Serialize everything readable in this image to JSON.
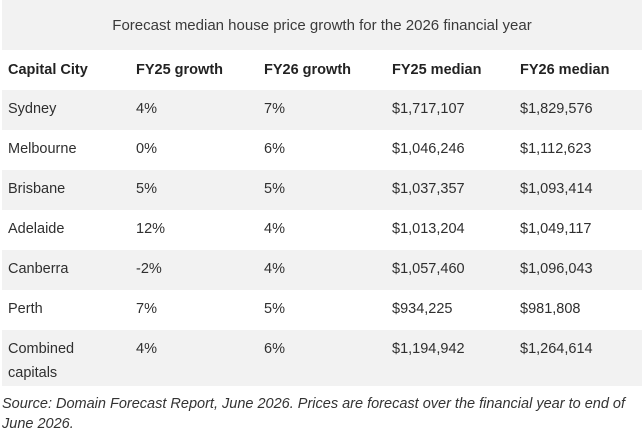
{
  "caption": "Forecast median house price growth for the 2026 financial year",
  "headers": [
    "Capital City",
    "FY25 growth",
    "FY26 growth",
    "FY25 median",
    "FY26 median"
  ],
  "rows": [
    [
      "Sydney",
      "4%",
      "7%",
      "$1,717,107",
      "$1,829,576"
    ],
    [
      "Melbourne",
      "0%",
      "6%",
      "$1,046,246",
      "$1,112,623"
    ],
    [
      "Brisbane",
      "5%",
      "5%",
      "$1,037,357",
      "$1,093,414"
    ],
    [
      "Adelaide",
      "12%",
      "4%",
      "$1,013,204",
      "$1,049,117"
    ],
    [
      "Canberra",
      "-2%",
      "4%",
      "$1,057,460",
      "$1,096,043"
    ],
    [
      "Perth",
      "7%",
      "5%",
      "$934,225",
      "$981,808"
    ],
    [
      "Combined capitals",
      "4%",
      "6%",
      "$1,194,942",
      "$1,264,614"
    ]
  ],
  "source": "Source: Domain Forecast Report, June 2026. Prices are forecast over the financial year to end of June 2026."
}
